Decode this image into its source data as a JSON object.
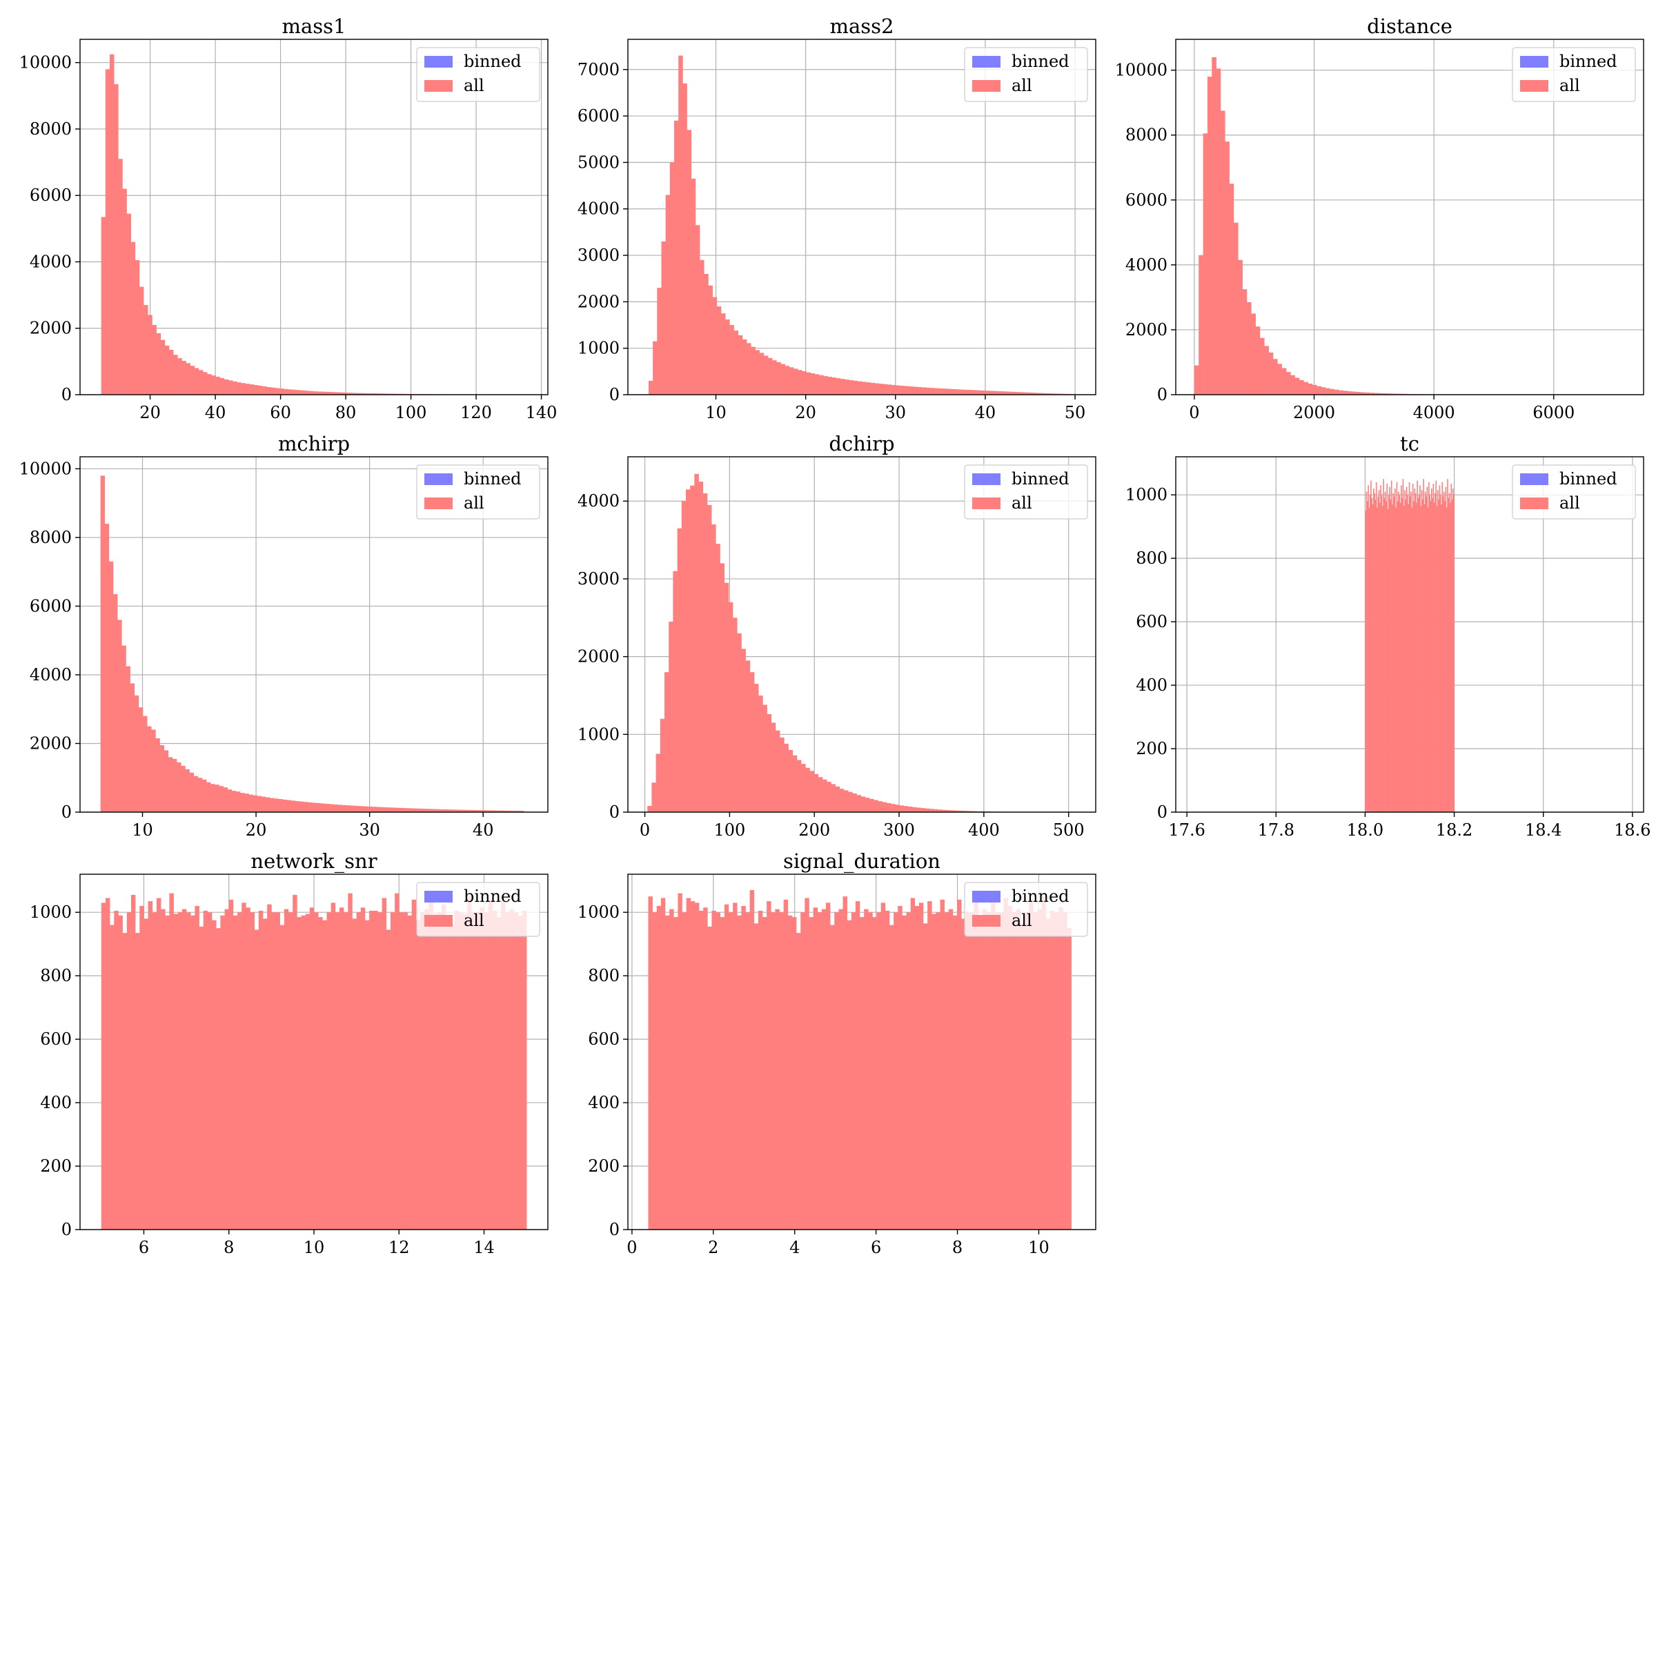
{
  "colors": {
    "binned": "#7f7fff",
    "all": "#ff7f7f",
    "grid": "#b0b0b0",
    "axis": "#000000"
  },
  "chart_data": [
    {
      "type": "bar",
      "title": "mass1",
      "xlim": [
        -1.5,
        142
      ],
      "ylim": [
        0,
        10700
      ],
      "xticks": [
        20,
        40,
        60,
        80,
        100,
        120,
        140
      ],
      "yticks": [
        0,
        2000,
        4000,
        6000,
        8000,
        10000
      ],
      "grid": true,
      "legend": "top-right",
      "legend_entries": [
        "binned",
        "all"
      ],
      "series": [
        {
          "name": "all",
          "bin_start": 5,
          "bin_width": 1.3,
          "values": [
            5350,
            9800,
            10250,
            9350,
            7100,
            6200,
            5450,
            4600,
            4050,
            3250,
            2700,
            2400,
            2100,
            1850,
            1650,
            1480,
            1350,
            1200,
            1100,
            1020,
            950,
            870,
            800,
            740,
            680,
            620,
            580,
            540,
            500,
            460,
            430,
            400,
            370,
            350,
            330,
            310,
            290,
            270,
            250,
            230,
            215,
            200,
            185,
            170,
            160,
            150,
            140,
            130,
            120,
            110,
            100,
            95,
            90,
            85,
            80,
            75,
            70,
            65,
            60,
            55,
            50,
            48,
            45,
            42,
            40,
            38,
            35,
            32,
            30,
            28,
            26,
            24,
            22,
            20,
            19,
            18,
            17,
            16,
            15,
            14,
            13,
            12,
            11,
            10,
            10,
            9,
            9,
            8,
            8,
            7,
            7,
            6,
            6,
            5,
            5,
            4,
            4,
            3,
            3,
            2
          ]
        }
      ]
    },
    {
      "type": "bar",
      "title": "mass2",
      "xlim": [
        0.2,
        52.3
      ],
      "ylim": [
        0,
        7650
      ],
      "xticks": [
        10,
        20,
        30,
        40,
        50
      ],
      "yticks": [
        0,
        1000,
        2000,
        3000,
        4000,
        5000,
        6000,
        7000
      ],
      "grid": true,
      "legend": "top-right",
      "legend_entries": [
        "binned",
        "all"
      ],
      "series": [
        {
          "name": "all",
          "bin_start": 2.5,
          "bin_width": 0.475,
          "values": [
            300,
            1150,
            2300,
            3300,
            4300,
            5000,
            5900,
            7300,
            6700,
            5700,
            4650,
            3650,
            2900,
            2600,
            2350,
            2100,
            1900,
            1750,
            1620,
            1500,
            1380,
            1280,
            1190,
            1110,
            1030,
            960,
            900,
            840,
            790,
            740,
            700,
            660,
            620,
            590,
            560,
            530,
            505,
            480,
            460,
            440,
            420,
            400,
            385,
            370,
            355,
            340,
            325,
            312,
            300,
            288,
            276,
            265,
            255,
            245,
            235,
            226,
            217,
            208,
            200,
            192,
            185,
            178,
            171,
            164,
            158,
            152,
            146,
            140,
            135,
            130,
            125,
            120,
            115,
            110,
            106,
            102,
            98,
            94,
            90,
            86,
            82,
            78,
            74,
            70,
            66,
            62,
            58,
            54,
            50,
            46,
            42,
            38,
            34,
            30,
            27,
            24,
            21,
            18,
            15,
            12
          ]
        }
      ]
    },
    {
      "type": "bar",
      "title": "distance",
      "xlim": [
        -310,
        7500
      ],
      "ylim": [
        0,
        10950
      ],
      "xticks": [
        0,
        2000,
        4000,
        6000
      ],
      "yticks": [
        0,
        2000,
        4000,
        6000,
        8000,
        10000
      ],
      "grid": true,
      "legend": "top-right",
      "legend_entries": [
        "binned",
        "all"
      ],
      "series": [
        {
          "name": "all",
          "bin_start": 0,
          "bin_width": 73,
          "values": [
            900,
            4300,
            8050,
            9800,
            10400,
            10050,
            8750,
            7800,
            6500,
            5300,
            4150,
            3250,
            2850,
            2500,
            2100,
            1750,
            1500,
            1300,
            1100,
            950,
            820,
            700,
            600,
            520,
            450,
            390,
            340,
            300,
            260,
            230,
            200,
            175,
            155,
            135,
            120,
            105,
            95,
            85,
            75,
            68,
            60,
            54,
            48,
            43,
            38,
            34,
            30,
            27,
            24,
            21,
            19,
            17,
            15,
            13,
            12,
            11,
            10,
            9,
            8,
            7,
            6,
            6,
            5,
            5,
            4,
            4,
            3,
            3,
            3,
            2,
            2,
            2,
            2,
            1,
            1,
            1,
            1,
            1,
            1,
            1,
            1,
            0,
            0,
            0,
            0,
            0,
            0,
            0,
            0,
            0,
            0,
            0,
            0,
            0,
            0,
            0,
            0,
            0,
            0,
            0
          ]
        }
      ]
    },
    {
      "type": "bar",
      "title": "mchirp",
      "xlim": [
        4.5,
        45.7
      ],
      "ylim": [
        0,
        10350
      ],
      "xticks": [
        10,
        20,
        30,
        40
      ],
      "yticks": [
        0,
        2000,
        4000,
        6000,
        8000,
        10000
      ],
      "grid": true,
      "legend": "top-right",
      "legend_entries": [
        "binned",
        "all"
      ],
      "series": [
        {
          "name": "all",
          "bin_start": 6.3,
          "bin_width": 0.373,
          "values": [
            9800,
            8400,
            7300,
            6350,
            5600,
            4850,
            4250,
            3750,
            3400,
            3050,
            2800,
            2500,
            2400,
            2150,
            1950,
            1800,
            1600,
            1550,
            1450,
            1350,
            1250,
            1150,
            1050,
            1000,
            950,
            870,
            820,
            800,
            760,
            720,
            660,
            620,
            600,
            560,
            540,
            510,
            490,
            470,
            450,
            430,
            410,
            395,
            380,
            365,
            350,
            335,
            320,
            308,
            296,
            284,
            272,
            262,
            252,
            242,
            232,
            223,
            214,
            206,
            198,
            190,
            183,
            176,
            169,
            163,
            157,
            151,
            145,
            140,
            135,
            130,
            125,
            120,
            115,
            111,
            107,
            103,
            99,
            95,
            91,
            87,
            83,
            80,
            77,
            74,
            71,
            68,
            65,
            62,
            60,
            58,
            56,
            54,
            52,
            50,
            48,
            46,
            44,
            42,
            40,
            38
          ]
        }
      ]
    },
    {
      "type": "bar",
      "title": "dchirp",
      "xlim": [
        -20,
        532
      ],
      "ylim": [
        0,
        4570
      ],
      "xticks": [
        0,
        100,
        200,
        300,
        400,
        500
      ],
      "yticks": [
        0,
        1000,
        2000,
        3000,
        4000
      ],
      "grid": true,
      "legend": "top-right",
      "legend_entries": [
        "binned",
        "all"
      ],
      "series": [
        {
          "name": "all",
          "bin_start": 3,
          "bin_width": 5.04,
          "values": [
            80,
            380,
            750,
            1200,
            1800,
            2450,
            3100,
            3650,
            4000,
            4150,
            4200,
            4350,
            4250,
            4100,
            3950,
            3700,
            3450,
            3200,
            2950,
            2700,
            2500,
            2300,
            2100,
            1950,
            1800,
            1650,
            1500,
            1380,
            1260,
            1150,
            1050,
            960,
            880,
            800,
            730,
            670,
            620,
            570,
            530,
            490,
            450,
            420,
            390,
            360,
            330,
            300,
            280,
            260,
            240,
            220,
            200,
            185,
            170,
            155,
            140,
            128,
            116,
            105,
            95,
            86,
            78,
            71,
            64,
            58,
            52,
            47,
            42,
            38,
            34,
            30,
            27,
            24,
            21,
            19,
            17,
            15,
            13,
            11,
            10,
            9,
            8,
            7,
            6,
            5,
            4,
            4,
            3,
            3,
            2,
            2,
            2,
            1,
            1,
            1,
            1,
            1,
            0,
            0,
            0,
            0
          ]
        }
      ]
    },
    {
      "type": "bar",
      "title": "tc",
      "xlim": [
        17.575,
        18.625
      ],
      "ylim": [
        0,
        1120
      ],
      "xticks": [
        17.6,
        17.8,
        18.0,
        18.2,
        18.4,
        18.6
      ],
      "tick_labels": [
        "17.6",
        "17.8",
        "18.0",
        "18.2",
        "18.4",
        "18.6"
      ],
      "yticks": [
        0,
        200,
        400,
        600,
        800,
        1000
      ],
      "grid": true,
      "legend": "top-right",
      "legend_entries": [
        "binned",
        "all"
      ],
      "series": [
        {
          "name": "all",
          "bin_start": 18.0,
          "bin_width": 0.002,
          "values": [
            950,
            1010,
            980,
            1030,
            960,
            1000,
            1045,
            990,
            970,
            1020,
            1005,
            985,
            1040,
            960,
            995,
            1015,
            975,
            1030,
            1000,
            965,
            1050,
            990,
            1010,
            980,
            1035,
            955,
            1000,
            1025,
            985,
            1045,
            970,
            1005,
            995,
            1020,
            960,
            1040,
            980,
            1010,
            1000,
            975,
            1030,
            990,
            1050,
            965,
            1015,
            985,
            1025,
            1000,
            970,
            1040,
            995,
            1010,
            960,
            1035,
            980,
            1020,
            1005,
            975,
            1045,
            990,
            1000,
            1030,
            965,
            1015,
            985,
            1050,
            970,
            1010,
            995,
            1025,
            960,
            1040,
            1000,
            980,
            1020,
            990,
            1035,
            975,
            1005,
            1045,
            965,
            1015,
            985,
            1030,
            1000,
            970,
            1040,
            995,
            1010,
            980,
            1025,
            960,
            1050,
            990,
            1005,
            975,
            1035,
            985,
            1020,
            1000
          ]
        }
      ]
    },
    {
      "type": "bar",
      "title": "network_snr",
      "xlim": [
        4.5,
        15.5
      ],
      "ylim": [
        0,
        1120
      ],
      "xticks": [
        6,
        8,
        10,
        12,
        14
      ],
      "yticks": [
        0,
        200,
        400,
        600,
        800,
        1000
      ],
      "grid": true,
      "legend": "top-right",
      "legend_entries": [
        "binned",
        "all"
      ],
      "series": [
        {
          "name": "all",
          "bin_start": 5,
          "bin_width": 0.1,
          "values": [
            1030,
            1045,
            960,
            1005,
            990,
            935,
            1000,
            1055,
            935,
            1020,
            980,
            1035,
            1000,
            1045,
            1010,
            990,
            1060,
            995,
            1000,
            1010,
            1000,
            990,
            1020,
            955,
            1005,
            1000,
            975,
            950,
            990,
            1010,
            1040,
            990,
            1000,
            1030,
            1015,
            1000,
            945,
            1005,
            980,
            1025,
            1000,
            1000,
            960,
            1010,
            1000,
            1055,
            985,
            990,
            995,
            1015,
            1000,
            985,
            975,
            1000,
            1030,
            1000,
            1015,
            1000,
            1060,
            980,
            1000,
            1015,
            975,
            1005,
            1005,
            1000,
            1045,
            945,
            1000,
            1060,
            1000,
            1000,
            990,
            1040,
            975,
            1000,
            1010,
            1035,
            995,
            1000,
            1025,
            985,
            960,
            1005,
            1000,
            995,
            1050,
            1000,
            1000,
            1015,
            1000,
            1040,
            1005,
            985,
            1035,
            1000,
            1010,
            1000,
            990,
            1005
          ]
        }
      ]
    },
    {
      "type": "bar",
      "title": "signal_duration",
      "xlim": [
        -0.1,
        11.4
      ],
      "ylim": [
        0,
        1120
      ],
      "xticks": [
        0,
        2,
        4,
        6,
        8,
        10
      ],
      "yticks": [
        0,
        200,
        400,
        600,
        800,
        1000
      ],
      "grid": true,
      "legend": "top-right",
      "legend_entries": [
        "binned",
        "all"
      ],
      "series": [
        {
          "name": "all",
          "bin_start": 0.4,
          "bin_width": 0.104,
          "values": [
            1050,
            1000,
            1020,
            1045,
            990,
            1010,
            985,
            1060,
            1000,
            1045,
            1035,
            1030,
            1005,
            1015,
            955,
            1005,
            1000,
            985,
            1025,
            1000,
            1030,
            990,
            1020,
            1000,
            1070,
            965,
            1005,
            985,
            1035,
            1000,
            1010,
            1000,
            1040,
            990,
            985,
            935,
            1000,
            1045,
            985,
            1015,
            1000,
            1010,
            1030,
            960,
            1000,
            1010,
            1050,
            975,
            1000,
            1035,
            985,
            1010,
            1000,
            985,
            1000,
            1030,
            1005,
            960,
            1000,
            1020,
            990,
            1000,
            1045,
            1020,
            1030,
            965,
            1035,
            995,
            1000,
            1040,
            1000,
            1010,
            990,
            1040,
            980,
            1000,
            1000,
            1060,
            985,
            1010,
            1000,
            1030,
            1000,
            1000,
            1045,
            1020,
            1000,
            1010,
            965,
            1000,
            1040,
            1000,
            1010,
            1050,
            980,
            1005,
            1000,
            1015,
            1000,
            950
          ]
        }
      ]
    }
  ]
}
